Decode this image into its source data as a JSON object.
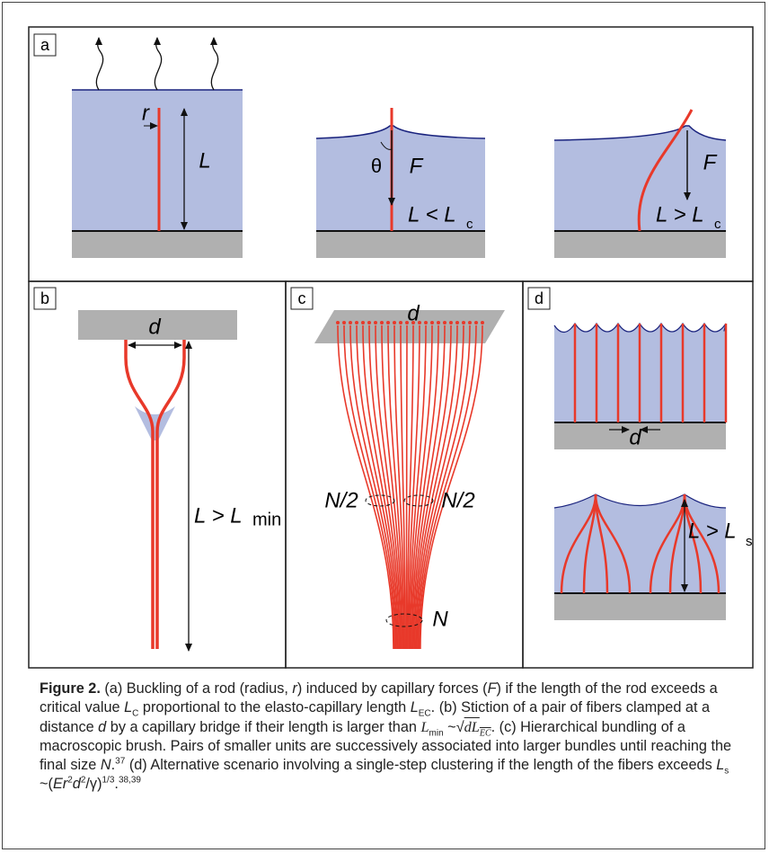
{
  "figure": {
    "panel_a": {
      "label": "a",
      "rod_radius": "r",
      "length": "L",
      "angle": "θ",
      "force_1": "F",
      "condition_1": "L < L",
      "condition_1_sub": "c",
      "force_2": "F",
      "condition_2": "L > L",
      "condition_2_sub": "c"
    },
    "panel_b": {
      "label": "b",
      "distance": "d",
      "condition": "L > L",
      "condition_sub": "min"
    },
    "panel_c": {
      "label": "c",
      "distance": "d",
      "half_left": "N/2",
      "half_right": "N/2",
      "total": "N"
    },
    "panel_d": {
      "label": "d",
      "distance": "d",
      "condition": "L > L",
      "condition_sub": "s"
    }
  },
  "caption": {
    "runs": [
      "Figure 2.",
      " (a) Buckling of a rod (radius, ",
      "r",
      ") induced by capillary forces (",
      "F",
      ") if the length of the rod exceeds a critical value ",
      "L",
      "C",
      " proportional to the elasto-capillary length ",
      "L",
      "EC",
      ". (b) Stiction of a pair of fibers clamped at a distance ",
      "d",
      " by a capillary bridge if their length is larger than ",
      "L",
      "min",
      " ~",
      "√",
      "dL",
      "EC",
      ". (c) Hierarchical bundling of a macroscopic brush. Pairs of smaller units are successively associated into larger bundles until reaching the final size ",
      "N",
      ".",
      "37",
      " (d) Alternative scenario involving a single-step clustering if the length of the fibers exceeds ",
      "L",
      "s",
      " ~(",
      "Er",
      "2",
      "d",
      "2",
      "/γ)",
      "1/3",
      ".",
      "38,39"
    ]
  }
}
